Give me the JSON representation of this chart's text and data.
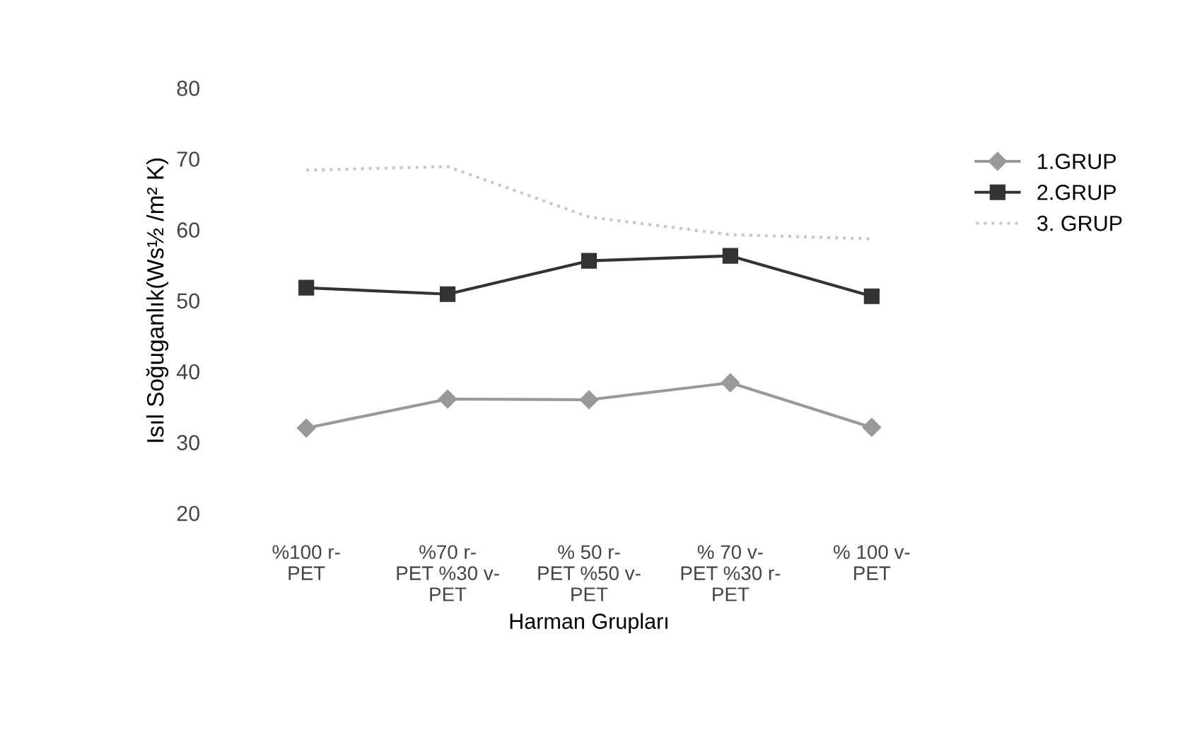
{
  "chart_data": {
    "type": "line",
    "xlabel": "Harman Grupları",
    "ylabel": "Isıl Soğuganlık(Ws½ /m² K)",
    "categories": [
      "%100 r-\nPET",
      "%70 r-\nPET %30 v-\nPET",
      "% 50 r-\nPET %50 v-\nPET",
      "% 70 v-\nPET %30 r-\nPET",
      "% 100 v-\nPET"
    ],
    "series": [
      {
        "name": "1.GRUP",
        "color": "#999999",
        "marker": "diamond",
        "line_style": "solid",
        "values": [
          32,
          36.1,
          36,
          38.4,
          32.1
        ]
      },
      {
        "name": "2.GRUP",
        "color": "#333333",
        "marker": "square",
        "line_style": "solid",
        "values": [
          51.8,
          50.9,
          55.6,
          56.3,
          50.6
        ]
      },
      {
        "name": "3. GRUP",
        "color": "#c8c8c8",
        "marker": "none",
        "line_style": "dotted",
        "values": [
          68.4,
          68.9,
          61.8,
          59.3,
          58.7
        ]
      }
    ],
    "ylim": [
      20,
      80
    ],
    "yticks": [
      20,
      30,
      40,
      50,
      60,
      70,
      80
    ],
    "grid": false,
    "legend": "right"
  }
}
